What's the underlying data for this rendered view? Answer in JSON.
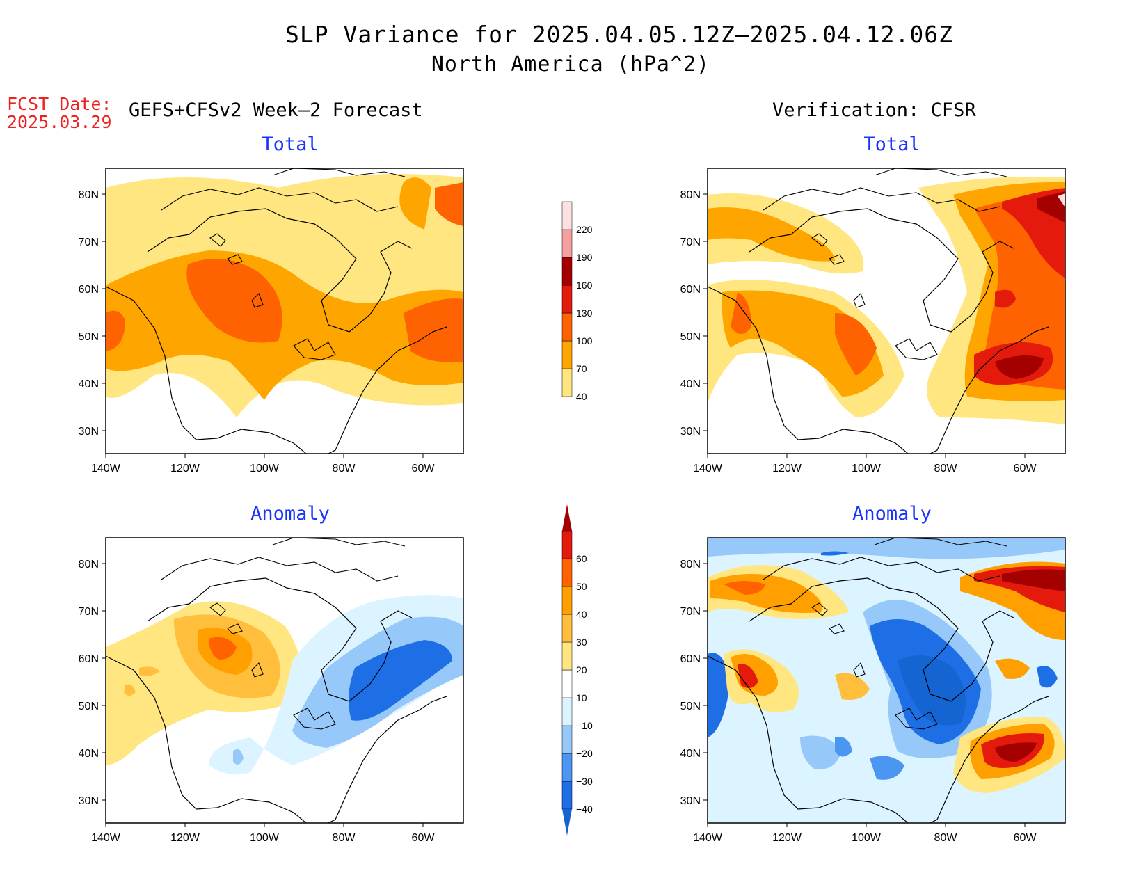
{
  "header": {
    "title": "SLP Variance for 2025.04.05.12Z–2025.04.12.06Z",
    "subtitle": "North America (hPa^2)",
    "fcst_label": "FCST Date:",
    "fcst_date": "2025.03.29"
  },
  "columns": {
    "left_title": "GEFS+CFSv2 Week–2 Forecast",
    "right_title": "Verification: CFSR"
  },
  "panels": {
    "top_left": "Total",
    "top_right": "Total",
    "bottom_left": "Anomaly",
    "bottom_right": "Anomaly"
  },
  "axes": {
    "lat_labels": [
      "80N",
      "70N",
      "60N",
      "50N",
      "40N",
      "30N"
    ],
    "lon_labels": [
      "140W",
      "120W",
      "100W",
      "80W",
      "60W"
    ]
  },
  "colorbars": {
    "total": {
      "levels": [
        "40",
        "70",
        "100",
        "130",
        "160",
        "190",
        "220"
      ],
      "colors": [
        "#ffe680",
        "#ffa500",
        "#ff6200",
        "#e31a0c",
        "#a50000",
        "#f4a0a0",
        "#fde0e0"
      ]
    },
    "anomaly": {
      "levels": [
        "−40",
        "−30",
        "−20",
        "−10",
        "10",
        "20",
        "30",
        "40",
        "50",
        "60"
      ],
      "colors": [
        "#1464d2",
        "#1e6ee6",
        "#4a96f0",
        "#96c8fa",
        "#dcf4ff",
        "#ffffff",
        "#ffe680",
        "#ffbe3c",
        "#ffa000",
        "#ff6200",
        "#e31a0c",
        "#a50000"
      ]
    }
  }
}
